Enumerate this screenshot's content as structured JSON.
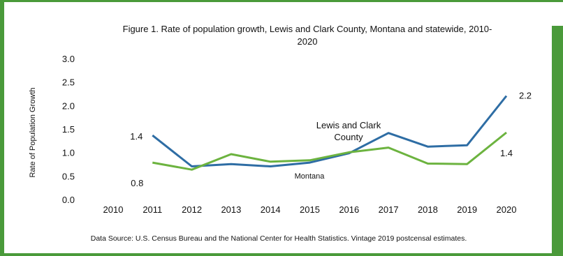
{
  "chart_data": {
    "type": "line",
    "title": "Figure 1. Rate of population growth, Lewis and Clark County, Montana and statewide, 2010-2020",
    "title_lines": [
      "Figure 1. Rate of population growth, Lewis and Clark County, Montana and statewide, 2010-",
      "2020"
    ],
    "ylabel": "Rate of Population Growth",
    "xlabel": "",
    "ylim": [
      0,
      3.0
    ],
    "yticks": [
      "0.0",
      "0.5",
      "1.0",
      "1.5",
      "2.0",
      "2.5",
      "3.0"
    ],
    "x": [
      "2010",
      "2011",
      "2012",
      "2013",
      "2014",
      "2015",
      "2016",
      "2017",
      "2018",
      "2019",
      "2020"
    ],
    "series": [
      {
        "name": "Lewis and Clark County",
        "name_lines": [
          "Lewis and Clark",
          "County"
        ],
        "color": "#2e6da4",
        "values": [
          null,
          1.38,
          0.72,
          0.77,
          0.72,
          0.8,
          1.0,
          1.43,
          1.14,
          1.17,
          2.22
        ]
      },
      {
        "name": "Montana",
        "name_lines": [
          "Montana"
        ],
        "color": "#6cb33f",
        "values": [
          null,
          0.8,
          0.65,
          0.98,
          0.82,
          0.85,
          1.02,
          1.12,
          0.78,
          0.77,
          1.44
        ]
      }
    ],
    "data_labels": [
      {
        "text": "1.4",
        "series": 0,
        "index": 1
      },
      {
        "text": "0.8",
        "series": 1,
        "index": 1
      },
      {
        "text": "2.2",
        "series": 0,
        "index": 10
      },
      {
        "text": "1.4",
        "series": 1,
        "index": 10
      }
    ],
    "grid": false,
    "source": "Data Source: U.S. Census Bureau and the National Center for Health Statistics. Vintage 2019 postcensal estimates."
  },
  "colors": {
    "frame": "#4a9a3a"
  }
}
